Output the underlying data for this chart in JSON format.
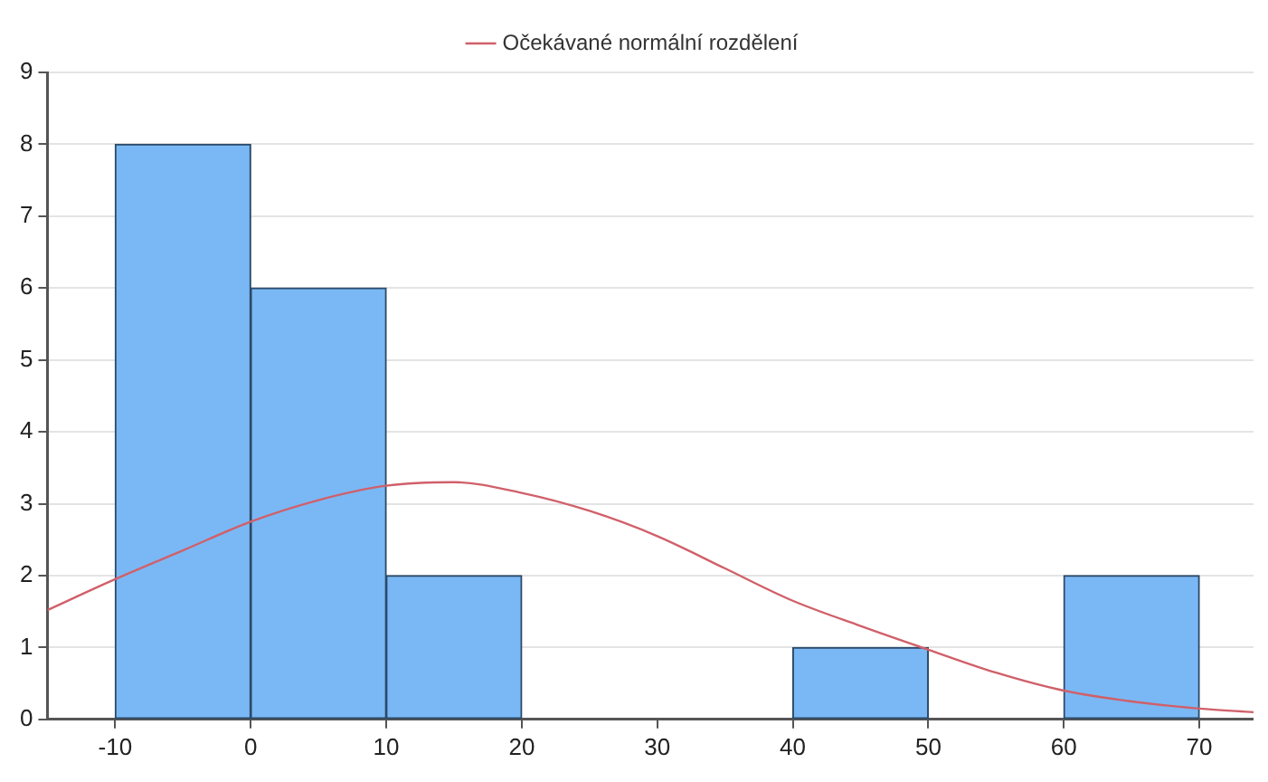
{
  "chart_data": {
    "type": "histogram",
    "bins": [
      -10,
      0,
      10,
      20,
      30,
      40,
      50,
      60,
      70
    ],
    "values": [
      8,
      6,
      2,
      0,
      0,
      1,
      0,
      2
    ],
    "color": "#7ab8f5",
    "series": [
      {
        "type": "line",
        "name": "Očekávané normální rozdělení",
        "color": "#d0606a",
        "x": [
          -15,
          -10,
          -5,
          0,
          5,
          10,
          15,
          20,
          25,
          30,
          35,
          40,
          45,
          50,
          55,
          60,
          65,
          70,
          74
        ],
        "values": [
          1.52,
          1.95,
          2.35,
          2.75,
          3.05,
          3.25,
          3.3,
          3.15,
          2.9,
          2.55,
          2.1,
          1.65,
          1.3,
          0.97,
          0.65,
          0.4,
          0.25,
          0.15,
          0.1
        ]
      }
    ],
    "xlim": [
      -15,
      74
    ],
    "xticks": [
      -10,
      0,
      10,
      20,
      30,
      40,
      50,
      60,
      70
    ],
    "ylim": [
      0,
      9
    ],
    "yticks": [
      0,
      1,
      2,
      3,
      4,
      5,
      6,
      7,
      8,
      9
    ],
    "grid": "y",
    "legend": "top"
  }
}
